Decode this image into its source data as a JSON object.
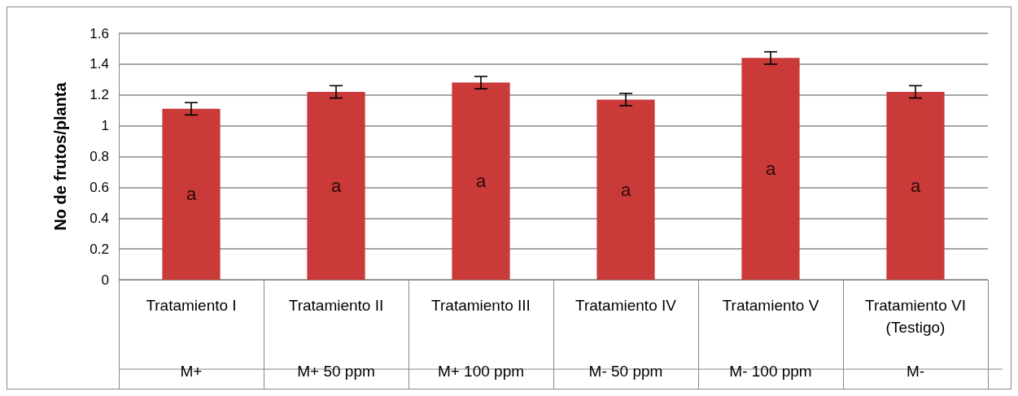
{
  "chart_data": {
    "type": "bar",
    "ylabel": "No de frutos/planta",
    "categories": [
      "Tratamiento I\nM+",
      "Tratamiento II\nM+ 50 ppm",
      "Tratamiento III\nM+ 100 ppm",
      "Tratamiento IV\nM- 50 ppm",
      "Tratamiento V\nM- 100 ppm",
      "Tratamiento VI\n(Testigo)\nM-"
    ],
    "values": [
      1.11,
      1.22,
      1.28,
      1.17,
      1.44,
      1.22
    ],
    "errors": [
      0.04,
      0.04,
      0.04,
      0.04,
      0.04,
      0.04
    ],
    "color": "#c93a38",
    "ylim": [
      0,
      1.6
    ],
    "yticks": [
      0,
      0.2,
      0.4,
      0.6,
      0.8,
      1,
      1.2,
      1.4,
      1.6
    ],
    "grid": "y",
    "annotations": [
      "a",
      "a",
      "a",
      "a",
      "a",
      "a"
    ]
  }
}
